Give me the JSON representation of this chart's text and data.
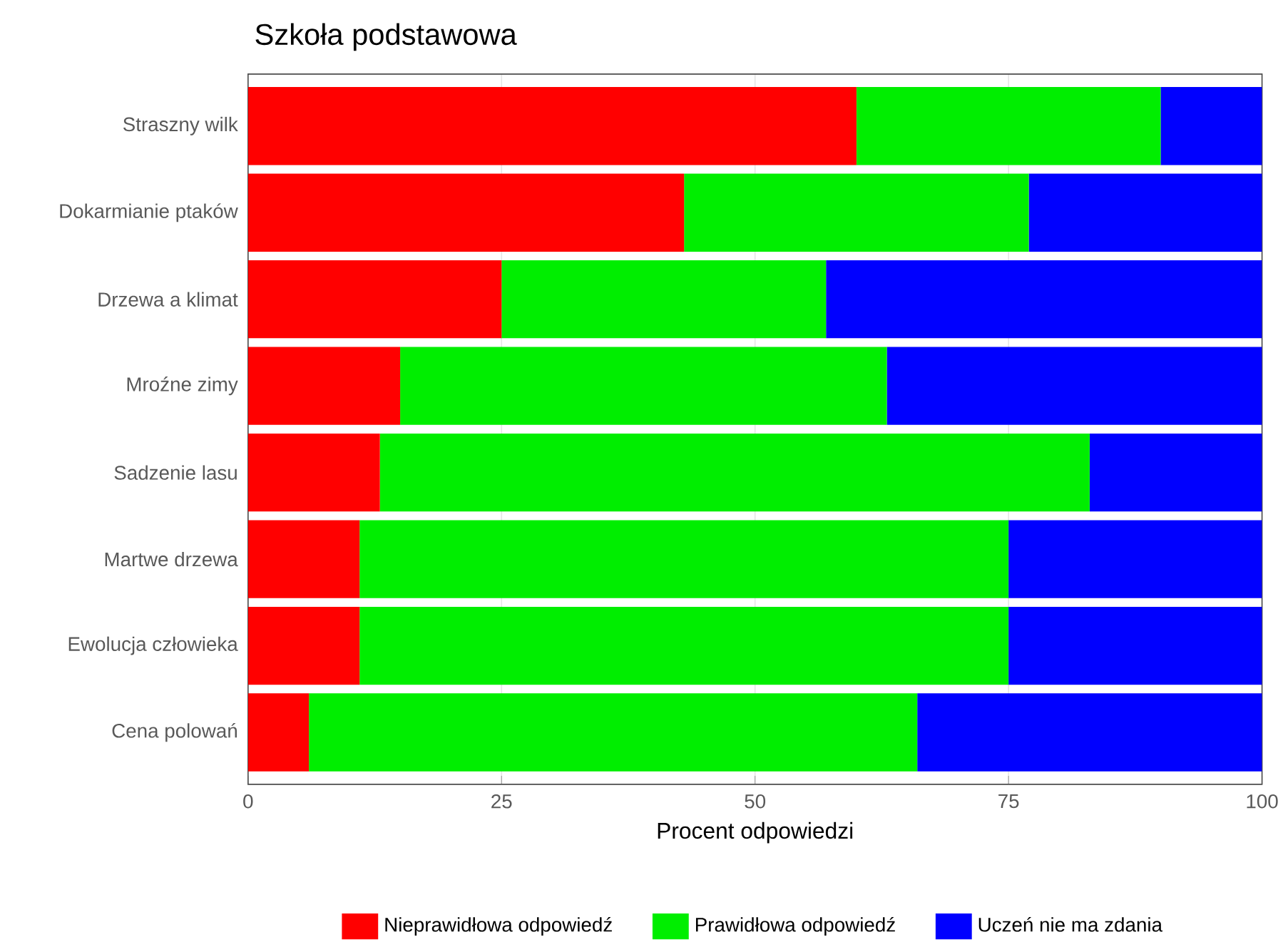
{
  "chart_data": {
    "type": "bar",
    "orientation": "horizontal",
    "stacked": true,
    "title": "Szkoła podstawowa",
    "xlabel": "Procent odpowiedzi",
    "categories": [
      "Straszny wilk",
      "Dokarmianie ptaków",
      "Drzewa a klimat",
      "Mroźne zimy",
      "Sadzenie lasu",
      "Martwe drzewa",
      "Ewolucja człowieka",
      "Cena polowań"
    ],
    "series": [
      {
        "name": "Nieprawidłowa odpowiedź",
        "color": "#ff0000",
        "values": [
          60,
          43,
          25,
          15,
          13,
          11,
          11,
          6
        ]
      },
      {
        "name": "Prawidłowa odpowiedź",
        "color": "#00ee00",
        "values": [
          30,
          34,
          32,
          48,
          70,
          64,
          64,
          60
        ]
      },
      {
        "name": "Uczeń nie ma zdania",
        "color": "#0000ff",
        "values": [
          10,
          23,
          43,
          37,
          17,
          25,
          25,
          34
        ]
      }
    ],
    "xlim": [
      0,
      100
    ],
    "xticks": [
      0,
      25,
      50,
      75,
      100
    ],
    "grid": "x",
    "legend": "bottom"
  }
}
